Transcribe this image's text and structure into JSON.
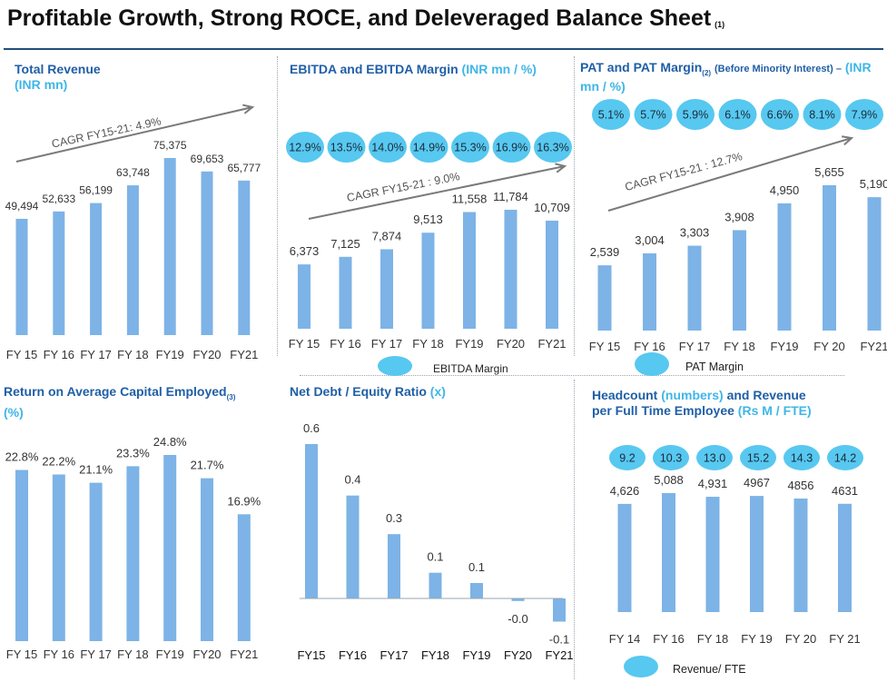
{
  "page": {
    "title": "Profitable Growth, Strong ROCE,  and Deleveraged Balance Sheet",
    "title_note": "(1)",
    "colors": {
      "bar": "#7db3e6",
      "bubble": "#57c8f0",
      "title": "#1f5fa6",
      "highlight": "#3fb6e8",
      "rule": "#1f4e79"
    }
  },
  "panels": {
    "revenue": {
      "title": "Total Revenue",
      "unit": "(INR mn)",
      "cagr": "CAGR FY15-21: 4.9%"
    },
    "ebitda": {
      "title": "EBITDA and EBITDA Margin",
      "unit": "(INR mn / %)",
      "cagr": "CAGR FY15-21 : 9.0%",
      "legend": "EBITDA Margin"
    },
    "pat": {
      "title": "PAT and PAT Margin",
      "title_sub": "(2)",
      "note": "(Before Minority Interest) –",
      "unit": "(INR mn / %)",
      "cagr": "CAGR FY15-21 : 12.7%",
      "legend": "PAT Margin"
    },
    "roce": {
      "title": "Return on Average Capital Employed",
      "title_sub": "(3)",
      "unit": "(%)"
    },
    "netdebt": {
      "title": "Net Debt / Equity Ratio",
      "unit": "(x)"
    },
    "headcount": {
      "title": "Headcount",
      "title_hl": "(numbers)",
      "title_mid": "and Revenue",
      "title_line2": "per Full Time Employee",
      "unit": "(Rs M / FTE)",
      "legend": "Revenue/ FTE"
    }
  },
  "chart_data": [
    {
      "id": "revenue",
      "type": "bar",
      "title": "Total Revenue",
      "categories": [
        "FY 15",
        "FY 16",
        "FY 17",
        "FY 18",
        "FY19",
        "FY20",
        "FY21"
      ],
      "values": [
        49494,
        52633,
        56199,
        63748,
        75375,
        69653,
        65777
      ],
      "labels": [
        "49,494",
        "52,633",
        "56,199",
        "63,748",
        "75,375",
        "69,653",
        "65,777"
      ],
      "annotation": "CAGR FY15-21: 4.9%"
    },
    {
      "id": "ebitda",
      "type": "bar",
      "title": "EBITDA and EBITDA Margin",
      "categories": [
        "FY 15",
        "FY 16",
        "FY 17",
        "FY 18",
        "FY19",
        "FY20",
        "FY21"
      ],
      "values": [
        6373,
        7125,
        7874,
        9513,
        11558,
        11784,
        10709
      ],
      "labels": [
        "6,373",
        "7,125",
        "7,874",
        "9,513",
        "11,558",
        "11,784",
        "10,709"
      ],
      "margins": [
        "12.9%",
        "13.5%",
        "14.0%",
        "14.9%",
        "15.3%",
        "16.9%",
        "16.3%"
      ],
      "annotation": "CAGR FY15-21 : 9.0%"
    },
    {
      "id": "pat",
      "type": "bar",
      "title": "PAT and PAT Margin",
      "categories": [
        "FY 15",
        "FY 16",
        "FY 17",
        "FY 18",
        "FY19",
        "FY 20",
        "FY21"
      ],
      "values": [
        2539,
        3004,
        3303,
        3908,
        4950,
        5655,
        5190
      ],
      "labels": [
        "2,539",
        "3,004",
        "3,303",
        "3,908",
        "4,950",
        "5,655",
        "5,190"
      ],
      "margins": [
        "5.1%",
        "5.7%",
        "5.9%",
        "6.1%",
        "6.6%",
        "8.1%",
        "7.9%"
      ],
      "annotation": "CAGR FY15-21 : 12.7%"
    },
    {
      "id": "roce",
      "type": "bar",
      "title": "Return on Average Capital Employed",
      "categories": [
        "FY 15",
        "FY 16",
        "FY 17",
        "FY 18",
        "FY19",
        "FY20",
        "FY21"
      ],
      "values": [
        22.8,
        22.2,
        21.1,
        23.3,
        24.8,
        21.7,
        16.9
      ],
      "labels": [
        "22.8%",
        "22.2%",
        "21.1%",
        "23.3%",
        "24.8%",
        "21.7%",
        "16.9%"
      ]
    },
    {
      "id": "netdebt",
      "type": "bar",
      "title": "Net Debt / Equity Ratio",
      "categories": [
        "FY15",
        "FY16",
        "FY17",
        "FY18",
        "FY19",
        "FY20",
        "FY21"
      ],
      "values": [
        0.6,
        0.4,
        0.25,
        0.1,
        0.06,
        -0.01,
        -0.09
      ],
      "labels": [
        "0.6",
        "0.4",
        "0.3",
        "0.1",
        "0.1",
        "-0.0",
        "-0.1"
      ]
    },
    {
      "id": "headcount",
      "type": "bar",
      "title": "Headcount and Revenue per Full Time Employee",
      "categories": [
        "FY 14",
        "FY 16",
        "FY 18",
        "FY 19",
        "FY 20",
        "FY 21"
      ],
      "values": [
        4626,
        5088,
        4931,
        4967,
        4856,
        4631
      ],
      "labels": [
        "4,626",
        "5,088",
        "4,931",
        "4967",
        "4856",
        "4631"
      ],
      "revenue_per_fte": [
        "9.2",
        "10.3",
        "13.0",
        "15.2",
        "14.3",
        "14.2"
      ]
    }
  ]
}
